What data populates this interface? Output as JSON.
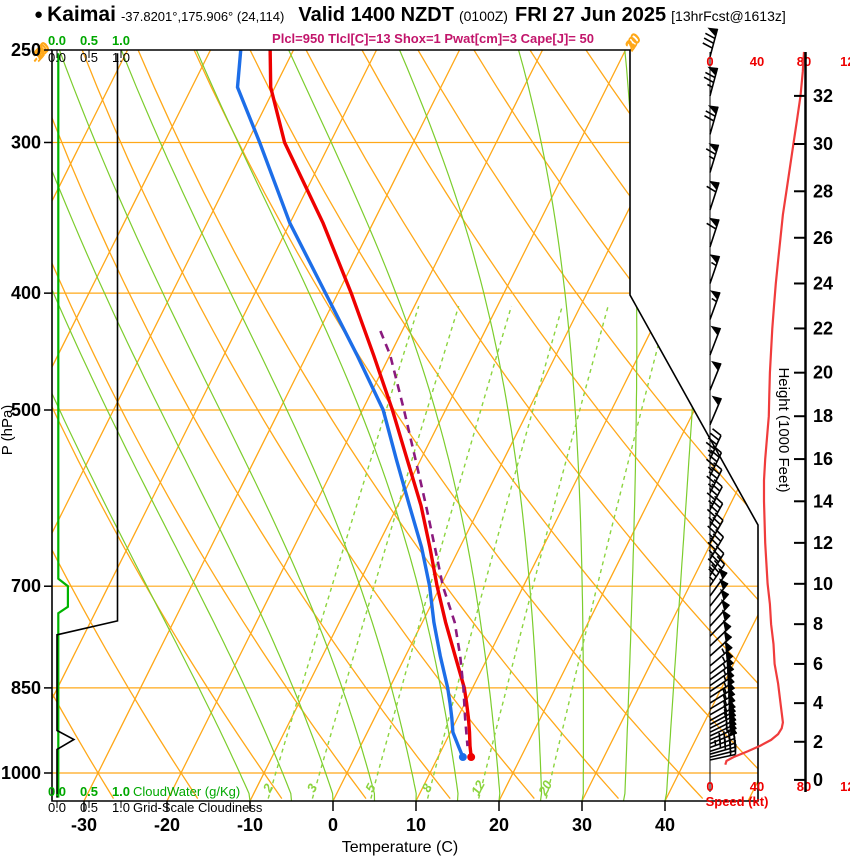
{
  "header": {
    "bullet": "●",
    "station": "Kaimai",
    "coords": "-37.8201°,175.906° (24,114)",
    "valid": "Valid 1400 NZDT",
    "zulu": "(0100Z)",
    "date": "FRI 27 Jun 2025",
    "fcst": "[13hrFcst@1613z]",
    "params": "Plcl=950 Tlcl[C]=13 Shox=1 Pwat[cm]=3 Cape[J]= 50"
  },
  "axes": {
    "pressure_label": "P (hPa)",
    "pressure_ticks": [
      250,
      300,
      400,
      500,
      700,
      850,
      1000
    ],
    "temp_label": "Temperature (C)",
    "temp_ticks": [
      -30,
      -20,
      -10,
      0,
      10,
      20,
      30,
      40
    ],
    "height_label": "Height (1000 Feet)",
    "height_ticks": [
      0,
      2,
      4,
      6,
      8,
      10,
      12,
      14,
      16,
      18,
      20,
      22,
      24,
      26,
      28,
      30,
      32
    ],
    "speed_label": "Speed (kt)",
    "speed_ticks": [
      0,
      40,
      80,
      120
    ],
    "cloudwater_label": "CloudWater (g/Kg)",
    "cloudiness_label": "Grid-Scale Cloudiness",
    "scale_ticks": [
      "0.0",
      "0.5",
      "1.0"
    ]
  },
  "colors": {
    "grid_orange": "#FFA819",
    "moist_green": "#7CCD2D",
    "mixing_green": "#8CD43F",
    "temp_red": "#EE0000",
    "dewpoint_blue": "#1D6EE8",
    "parcel_purple": "#8B1A7E",
    "speed_red": "#F03C3C",
    "cloudwater_green": "#00B400",
    "scale_green": "#00A800",
    "cloudiness_black": "#000000",
    "params_magenta": "#C2156B",
    "axis_black": "#000000"
  },
  "chart_data": {
    "type": "skewt-sounding",
    "isotherms_c": [
      -70,
      -60,
      -50,
      -40,
      -30,
      -20,
      -10,
      0,
      10,
      20,
      30,
      40,
      50
    ],
    "isotherm_labels_c": [
      0,
      10,
      20,
      30
    ],
    "dry_adiabat_thetas_c": [
      -30,
      -20,
      -10,
      0,
      10,
      20,
      30,
      40,
      50,
      60,
      70,
      80,
      90,
      100,
      110,
      120
    ],
    "dry_adiabat_labels_c": [
      10,
      0,
      -10,
      -20,
      -30
    ],
    "moist_adiabat_start_temps_c": [
      -10,
      -5,
      0,
      5,
      10,
      15,
      20,
      25,
      30,
      35,
      40
    ],
    "mixing_ratio_lines_gkg": [
      2,
      3,
      5,
      8,
      12,
      20
    ],
    "sounding": {
      "pressure_hpa": [
        970,
        950,
        925,
        900,
        875,
        850,
        800,
        750,
        700,
        650,
        600,
        550,
        500,
        450,
        400,
        350,
        300,
        270,
        250
      ],
      "temp_c": [
        14,
        13.2,
        12.3,
        11.3,
        10.2,
        9,
        6,
        2.8,
        -0.4,
        -3.6,
        -7.2,
        -11.6,
        -16.4,
        -22,
        -28.4,
        -36,
        -45.5,
        -50.5,
        -53
      ],
      "dewpoint_c": [
        13,
        11.8,
        10.3,
        9.3,
        8.2,
        7,
        4.2,
        1.4,
        -1.3,
        -4.6,
        -8.6,
        -12.9,
        -17.5,
        -24,
        -31.5,
        -40,
        -48.5,
        -54.5,
        -56.5
      ]
    },
    "parcel_path": {
      "pressure_hpa": [
        950,
        900,
        850,
        800,
        750,
        700,
        650,
        600,
        550,
        500,
        450,
        430
      ],
      "temp_c": [
        12.9,
        10.9,
        8.9,
        6.6,
        3.9,
        0.3,
        -3,
        -6.6,
        -10.6,
        -15,
        -20,
        -22.6
      ]
    },
    "wind_speed_profile": {
      "height_kft": [
        0.8,
        1.0,
        1.2,
        1.5,
        1.8,
        2.1,
        2.4,
        2.7,
        3.0,
        3.5,
        4,
        5,
        6,
        7,
        8,
        9,
        10,
        11,
        12,
        13,
        14,
        15,
        16,
        17,
        18,
        19,
        20,
        21,
        22,
        23,
        24,
        25,
        26,
        27,
        28,
        29,
        30,
        31,
        32,
        33,
        33.8
      ],
      "speed_kt": [
        13,
        14,
        20,
        32,
        43,
        52,
        58,
        61,
        62,
        61,
        60,
        58,
        55,
        54,
        52,
        51,
        49,
        48,
        47,
        46.5,
        46,
        46,
        47,
        48.5,
        50,
        50.5,
        51,
        52,
        53,
        54.5,
        56,
        58,
        60,
        62,
        65,
        68,
        71,
        74,
        77,
        79,
        80
      ]
    },
    "wind_barbs": [
      [
        33.6,
        80,
        15
      ],
      [
        32,
        75,
        15
      ],
      [
        30.4,
        72,
        16
      ],
      [
        28.8,
        68,
        17
      ],
      [
        27.2,
        63,
        18
      ],
      [
        25.6,
        60,
        18
      ],
      [
        24,
        57,
        19
      ],
      [
        22.4,
        55,
        20
      ],
      [
        20.8,
        52,
        21
      ],
      [
        19.2,
        51,
        22
      ],
      [
        17.6,
        50,
        23
      ],
      [
        16,
        47,
        25
      ],
      [
        15.2,
        46,
        26
      ],
      [
        14.4,
        46,
        27
      ],
      [
        13.6,
        46,
        28
      ],
      [
        12.8,
        47,
        29
      ],
      [
        12,
        47,
        30
      ],
      [
        11.2,
        48,
        31
      ],
      [
        10.4,
        48,
        32
      ],
      [
        9.9,
        49,
        34
      ],
      [
        9.4,
        50,
        36
      ],
      [
        8.9,
        50,
        38
      ],
      [
        8.4,
        51,
        40
      ],
      [
        7.9,
        52,
        42
      ],
      [
        7.4,
        52,
        44
      ],
      [
        6.9,
        53,
        46
      ],
      [
        6.4,
        54,
        48
      ],
      [
        5.9,
        55,
        50
      ],
      [
        5.5,
        56,
        52
      ],
      [
        5.2,
        57,
        54
      ],
      [
        4.9,
        58,
        55
      ],
      [
        4.6,
        58,
        56
      ],
      [
        4.3,
        59,
        57
      ],
      [
        4.0,
        59,
        58
      ],
      [
        3.7,
        60,
        59
      ],
      [
        3.4,
        61,
        60
      ],
      [
        3.1,
        61,
        61
      ],
      [
        2.9,
        62,
        62
      ],
      [
        2.7,
        62,
        63
      ],
      [
        2.5,
        61,
        64
      ],
      [
        2.3,
        59,
        65
      ],
      [
        2.1,
        56,
        66
      ],
      [
        1.9,
        52,
        68
      ],
      [
        1.7,
        47,
        70
      ],
      [
        1.5,
        40,
        72
      ],
      [
        1.35,
        32,
        74
      ],
      [
        1.2,
        24,
        76
      ],
      [
        1.05,
        17,
        78
      ]
    ],
    "cloud_water_gkg": {
      "pressure_hpa": [
        253,
        690,
        700,
        728,
        737,
        1048
      ],
      "value": [
        0.02,
        0.02,
        0.17,
        0.17,
        0.02,
        0.02
      ]
    },
    "grid_scale_cloudiness": {
      "pressure_hpa": [
        253,
        748,
        768,
        922,
        938,
        956,
        1048
      ],
      "value": [
        1.0,
        1.0,
        0,
        0,
        0.28,
        0,
        0
      ]
    }
  }
}
